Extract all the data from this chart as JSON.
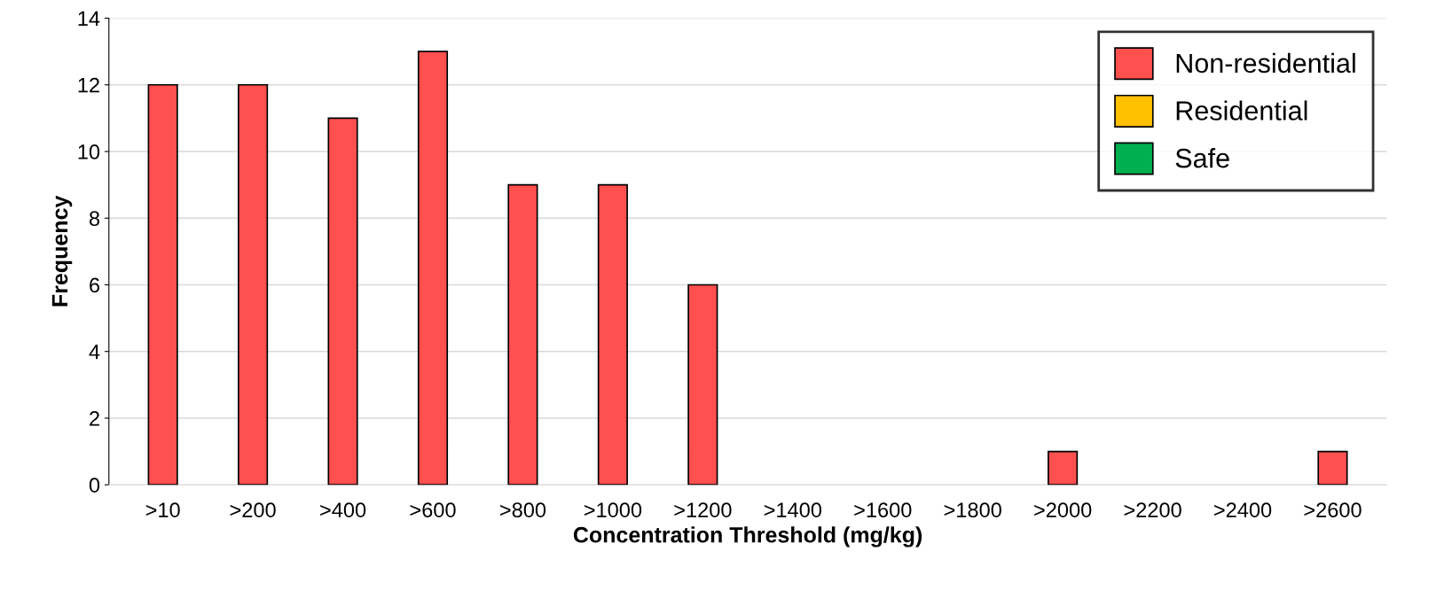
{
  "chart_data": {
    "type": "bar",
    "xlabel": "Concentration Threshold (mg/kg)",
    "ylabel": "Frequency",
    "categories": [
      ">10",
      ">200",
      ">400",
      ">600",
      ">800",
      ">1000",
      ">1200",
      ">1400",
      ">1600",
      ">1800",
      ">2000",
      ">2200",
      ">2400",
      ">2600"
    ],
    "series": [
      {
        "name": "Non-residential",
        "color": "#ff5050",
        "values": [
          12,
          12,
          11,
          13,
          9,
          9,
          6,
          0,
          0,
          0,
          1,
          0,
          0,
          1
        ]
      },
      {
        "name": "Residential",
        "color": "#ffc000",
        "values": [
          null,
          null,
          null,
          null,
          null,
          null,
          null,
          null,
          null,
          null,
          null,
          null,
          null,
          null
        ]
      },
      {
        "name": "Safe",
        "color": "#00b050",
        "values": [
          null,
          null,
          null,
          null,
          null,
          null,
          null,
          null,
          null,
          null,
          null,
          null,
          null,
          null
        ]
      }
    ],
    "ylim": [
      0,
      14
    ],
    "yticks": [
      0,
      2,
      4,
      6,
      8,
      10,
      12,
      14
    ],
    "grid": "y",
    "legend": "top right"
  }
}
